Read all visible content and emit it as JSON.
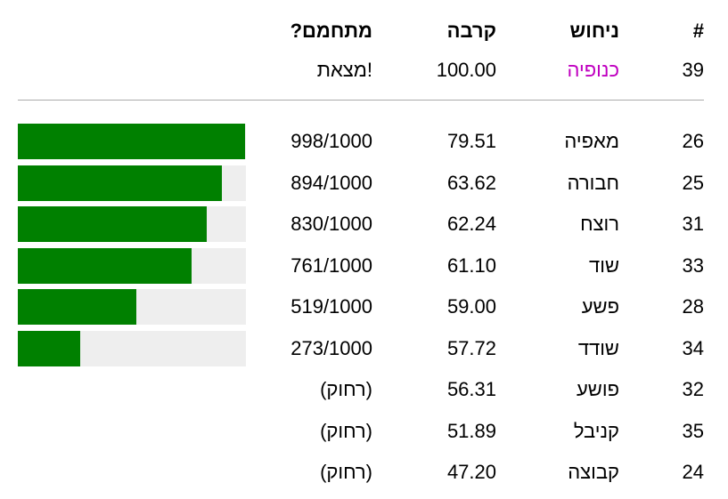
{
  "header": {
    "number": "#",
    "guess": "ניחוש",
    "similarity": "קרבה",
    "warming": "מתחמם?"
  },
  "latest": {
    "number": 39,
    "guess": "כנופיה",
    "similarity": "100.00",
    "warming": "מצאת!"
  },
  "progress_max": 1000,
  "rows": [
    {
      "number": 26,
      "guess": "מאפיה",
      "similarity": "79.51",
      "progress": {
        "value": 998,
        "label": "998/1000"
      }
    },
    {
      "number": 25,
      "guess": "חבורה",
      "similarity": "63.62",
      "progress": {
        "value": 894,
        "label": "894/1000"
      }
    },
    {
      "number": 31,
      "guess": "רוצח",
      "similarity": "62.24",
      "progress": {
        "value": 830,
        "label": "830/1000"
      }
    },
    {
      "number": 33,
      "guess": "שוד",
      "similarity": "61.10",
      "progress": {
        "value": 761,
        "label": "761/1000"
      }
    },
    {
      "number": 28,
      "guess": "פשע",
      "similarity": "59.00",
      "progress": {
        "value": 519,
        "label": "519/1000"
      }
    },
    {
      "number": 34,
      "guess": "שודד",
      "similarity": "57.72",
      "progress": {
        "value": 273,
        "label": "273/1000"
      }
    },
    {
      "number": 32,
      "guess": "פושע",
      "similarity": "56.31",
      "warming": "(רחוק)"
    },
    {
      "number": 35,
      "guess": "קניבל",
      "similarity": "51.89",
      "warming": "(רחוק)"
    },
    {
      "number": 24,
      "guess": "קבוצה",
      "similarity": "47.20",
      "warming": "(רחוק)"
    }
  ]
}
